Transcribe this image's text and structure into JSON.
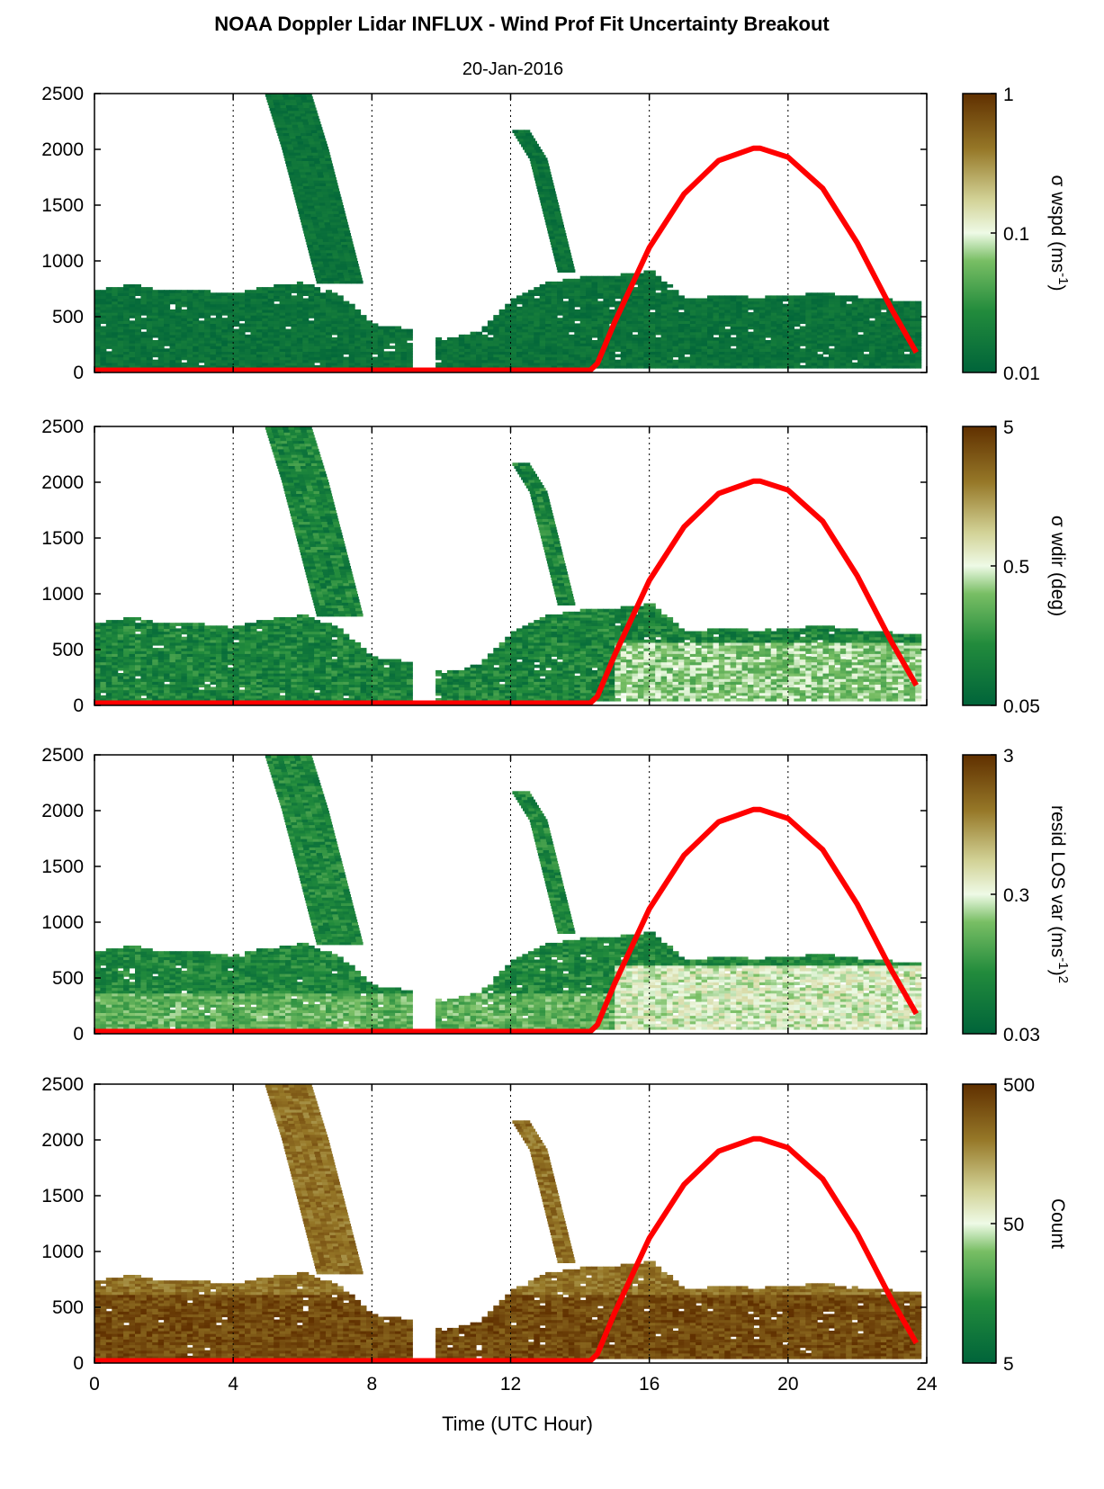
{
  "title": "NOAA Doppler Lidar INFLUX - Wind Prof Fit Uncertainty Breakout",
  "subtitle": "20-Jan-2016",
  "colors": {
    "sun_curve": "#ff0000",
    "colormap_low": "#00643a",
    "colormap_mid": "#f2fae8",
    "colormap_high": "#603000",
    "gridline": "#000000"
  },
  "chart_data": [
    {
      "type": "heatmap",
      "panel": "sigma-wspd",
      "xlabel": "",
      "ylabel": "",
      "xlim": [
        0,
        24
      ],
      "ylim": [
        0,
        2500
      ],
      "x_ticks": [
        "0",
        "4",
        "8",
        "12",
        "16",
        "20",
        "24"
      ],
      "y_ticks": [
        "0",
        "500",
        "1000",
        "1500",
        "2000",
        "2500"
      ],
      "x_tick_values": [
        0,
        4,
        8,
        12,
        16,
        20,
        24
      ],
      "y_tick_values": [
        0,
        500,
        1000,
        1500,
        2000,
        2500
      ],
      "grid": "vertical dotted at 4, 8, 12, 16, 20",
      "colorbar": {
        "label": "σ wspd (ms",
        "label_sup": "-1",
        "label_end": ")",
        "scale": "log",
        "ticks": [
          "1",
          "0.1",
          "0.01"
        ],
        "tick_values": [
          1,
          0.1,
          0.01
        ]
      },
      "field": "low"
    },
    {
      "type": "heatmap",
      "panel": "sigma-wdir",
      "xlabel": "",
      "ylabel": "",
      "xlim": [
        0,
        24
      ],
      "ylim": [
        0,
        2500
      ],
      "x_ticks": [
        "0",
        "4",
        "8",
        "12",
        "16",
        "20",
        "24"
      ],
      "y_ticks": [
        "0",
        "500",
        "1000",
        "1500",
        "2000",
        "2500"
      ],
      "x_tick_values": [
        0,
        4,
        8,
        12,
        16,
        20,
        24
      ],
      "y_tick_values": [
        0,
        500,
        1000,
        1500,
        2000,
        2500
      ],
      "grid": "vertical dotted at 4, 8, 12, 16, 20",
      "colorbar": {
        "label": "σ wdir (deg)",
        "label_sup": "",
        "label_end": "",
        "scale": "log",
        "ticks": [
          "5",
          "0.5",
          "0.05"
        ],
        "tick_values": [
          5,
          0.5,
          0.05
        ]
      },
      "field": "mixed"
    },
    {
      "type": "heatmap",
      "panel": "resid-los-var",
      "xlabel": "",
      "ylabel": "",
      "xlim": [
        0,
        24
      ],
      "ylim": [
        0,
        2500
      ],
      "x_ticks": [
        "0",
        "4",
        "8",
        "12",
        "16",
        "20",
        "24"
      ],
      "y_ticks": [
        "0",
        "500",
        "1000",
        "1500",
        "2000",
        "2500"
      ],
      "x_tick_values": [
        0,
        4,
        8,
        12,
        16,
        20,
        24
      ],
      "y_tick_values": [
        0,
        500,
        1000,
        1500,
        2000,
        2500
      ],
      "grid": "vertical dotted at 4, 8, 12, 16, 20",
      "colorbar": {
        "label": "resid LOS var (ms",
        "label_sup": "-1",
        "label_end": ")",
        "label_sup2": "2",
        "scale": "log",
        "ticks": [
          "3",
          "0.3",
          "0.03"
        ],
        "tick_values": [
          3,
          0.3,
          0.03
        ]
      },
      "field": "light"
    },
    {
      "type": "heatmap",
      "panel": "count",
      "xlabel": "Time (UTC Hour)",
      "ylabel": "",
      "xlim": [
        0,
        24
      ],
      "ylim": [
        0,
        2500
      ],
      "x_ticks": [
        "0",
        "4",
        "8",
        "12",
        "16",
        "20",
        "24"
      ],
      "y_ticks": [
        "0",
        "500",
        "1000",
        "1500",
        "2000",
        "2500"
      ],
      "x_tick_values": [
        0,
        4,
        8,
        12,
        16,
        20,
        24
      ],
      "y_tick_values": [
        0,
        500,
        1000,
        1500,
        2000,
        2500
      ],
      "grid": "vertical dotted at 4, 8, 12, 16, 20",
      "colorbar": {
        "label": "Count",
        "label_sup": "",
        "label_end": "",
        "scale": "log",
        "ticks": [
          "500",
          "50",
          "5"
        ],
        "tick_values": [
          500,
          50,
          5
        ]
      },
      "field": "high"
    }
  ],
  "sun_elevation_curve": {
    "x": [
      0,
      14.3,
      14.5,
      15,
      16,
      17,
      18,
      19,
      19.2,
      20,
      21,
      22,
      23,
      23.7
    ],
    "y": [
      20,
      20,
      80,
      450,
      1120,
      1600,
      1900,
      2010,
      2010,
      1930,
      1650,
      1160,
      560,
      180
    ]
  },
  "data_coverage": {
    "boundary_layer_top": [
      [
        0,
        720
      ],
      [
        1,
        780
      ],
      [
        2,
        720
      ],
      [
        3,
        720
      ],
      [
        4,
        700
      ],
      [
        5,
        760
      ],
      [
        6,
        800
      ],
      [
        7,
        680
      ],
      [
        8,
        420
      ],
      [
        9,
        380
      ],
      [
        10,
        280
      ],
      [
        11,
        360
      ],
      [
        12,
        640
      ],
      [
        13,
        800
      ],
      [
        14,
        840
      ],
      [
        15,
        860
      ],
      [
        16,
        900
      ],
      [
        17,
        640
      ],
      [
        18,
        680
      ],
      [
        19,
        660
      ],
      [
        20,
        680
      ],
      [
        21,
        700
      ],
      [
        22,
        660
      ],
      [
        23,
        640
      ],
      [
        23.7,
        620
      ]
    ],
    "rising_layer": [
      [
        4.5,
        2500
      ],
      [
        5.5,
        2500
      ],
      [
        6,
        2000
      ],
      [
        6.5,
        1400
      ],
      [
        7,
        800
      ]
    ],
    "afternoon_layer": [
      [
        12.3,
        2150
      ],
      [
        12.8,
        1900
      ],
      [
        13.2,
        1400
      ],
      [
        13.6,
        900
      ]
    ]
  }
}
